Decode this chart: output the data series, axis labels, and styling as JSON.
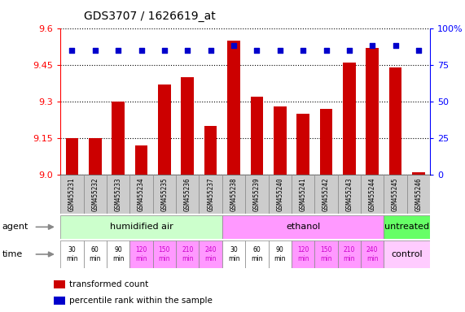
{
  "title": "GDS3707 / 1626619_at",
  "samples": [
    "GSM455231",
    "GSM455232",
    "GSM455233",
    "GSM455234",
    "GSM455235",
    "GSM455236",
    "GSM455237",
    "GSM455238",
    "GSM455239",
    "GSM455240",
    "GSM455241",
    "GSM455242",
    "GSM455243",
    "GSM455244",
    "GSM455245",
    "GSM455246"
  ],
  "bar_values": [
    9.15,
    9.15,
    9.3,
    9.12,
    9.37,
    9.4,
    9.2,
    9.55,
    9.32,
    9.28,
    9.25,
    9.27,
    9.46,
    9.52,
    9.44,
    9.01
  ],
  "percentile_values": [
    85,
    85,
    85,
    85,
    85,
    85,
    85,
    88,
    85,
    85,
    85,
    85,
    85,
    88,
    88,
    85
  ],
  "ylim_left": [
    9.0,
    9.6
  ],
  "ylim_right": [
    0,
    100
  ],
  "yticks_left": [
    9.0,
    9.15,
    9.3,
    9.45,
    9.6
  ],
  "yticks_right": [
    0,
    25,
    50,
    75,
    100
  ],
  "bar_color": "#cc0000",
  "dot_color": "#0000cc",
  "agent_groups": [
    {
      "label": "humidified air",
      "start": 0,
      "end": 7,
      "color": "#ccffcc"
    },
    {
      "label": "ethanol",
      "start": 7,
      "end": 14,
      "color": "#ff99ff"
    },
    {
      "label": "untreated",
      "start": 14,
      "end": 16,
      "color": "#66ff66"
    }
  ],
  "time_labels": [
    "30\nmin",
    "60\nmin",
    "90\nmin",
    "120\nmin",
    "150\nmin",
    "210\nmin",
    "240\nmin",
    "30\nmin",
    "60\nmin",
    "90\nmin",
    "120\nmin",
    "150\nmin",
    "210\nmin",
    "240\nmin"
  ],
  "time_cell_colors": [
    "#ffffff",
    "#ffffff",
    "#ffffff",
    "#ff99ff",
    "#ff99ff",
    "#ff99ff",
    "#ff99ff",
    "#ffffff",
    "#ffffff",
    "#ffffff",
    "#ff99ff",
    "#ff99ff",
    "#ff99ff",
    "#ff99ff"
  ],
  "time_text_colors": [
    "#000000",
    "#000000",
    "#000000",
    "#cc00cc",
    "#cc00cc",
    "#cc00cc",
    "#cc00cc",
    "#000000",
    "#000000",
    "#000000",
    "#cc00cc",
    "#cc00cc",
    "#cc00cc",
    "#cc00cc"
  ],
  "control_color": "#ffccff",
  "control_label": "control",
  "sample_box_color": "#cccccc",
  "legend_bar_label": "transformed count",
  "legend_dot_label": "percentile rank within the sample"
}
